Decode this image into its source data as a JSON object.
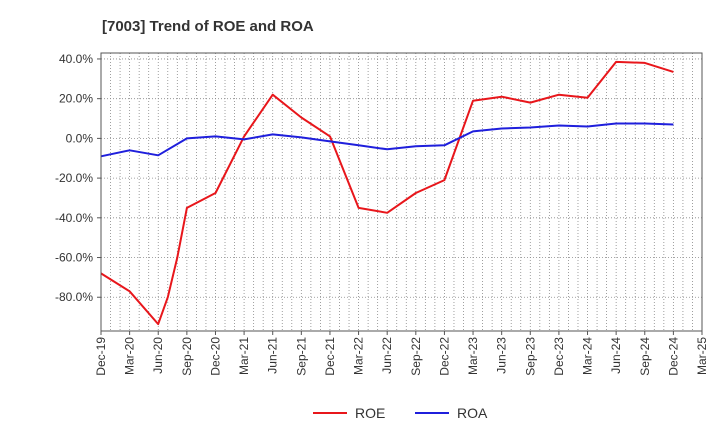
{
  "chart_data": {
    "type": "line",
    "title": "[7003]  Trend of ROE and ROA",
    "xlabel": "",
    "ylabel": "",
    "x": [
      "Dec-19",
      "Mar-20",
      "Jun-20",
      "Sep-20",
      "Dec-20",
      "Mar-21",
      "Jun-21",
      "Sep-21",
      "Dec-21",
      "Mar-22",
      "Jun-22",
      "Sep-22",
      "Dec-22",
      "Mar-23",
      "Jun-23",
      "Sep-23",
      "Dec-23",
      "Mar-24",
      "Jun-24",
      "Sep-24",
      "Dec-24",
      "Mar-25"
    ],
    "x_ticks": [
      "Dec-19",
      "Mar-20",
      "Jun-20",
      "Sep-20",
      "Dec-20",
      "Mar-21",
      "Jun-21",
      "Sep-21",
      "Dec-21",
      "Mar-22",
      "Jun-22",
      "Sep-22",
      "Dec-22",
      "Mar-23",
      "Jun-23",
      "Sep-23",
      "Dec-23",
      "Mar-24",
      "Jun-24",
      "Sep-24",
      "Dec-24",
      "Mar-25"
    ],
    "ylim": [
      -97,
      43
    ],
    "y_ticks": [
      40,
      20,
      0,
      -20,
      -40,
      -60,
      -80
    ],
    "y_tick_labels": [
      "40.0%",
      "20.0%",
      "0.0%",
      "-20.0%",
      "-40.0%",
      "-60.0%",
      "-80.0%"
    ],
    "grid": true,
    "legend_position": "bottom",
    "series": [
      {
        "name": "ROE",
        "color": "#e8161b",
        "points": [
          [
            "Dec-19",
            -68
          ],
          [
            "Mar-20",
            -77
          ],
          [
            "Jun-20",
            -93.5
          ],
          [
            "Jun-20+1",
            -80
          ],
          [
            "Jun-20+2",
            -60
          ],
          [
            "Sep-20",
            -35
          ],
          [
            "Dec-20",
            -27.5
          ],
          [
            "Mar-21",
            1
          ],
          [
            "Jun-21",
            22
          ],
          [
            "Sep-21",
            10.5
          ],
          [
            "Dec-21",
            1
          ],
          [
            "Mar-22",
            -35
          ],
          [
            "Jun-22",
            -37.5
          ],
          [
            "Sep-22",
            -27.5
          ],
          [
            "Dec-22",
            -21
          ],
          [
            "Mar-23",
            19
          ],
          [
            "Jun-23",
            21
          ],
          [
            "Sep-23",
            18
          ],
          [
            "Dec-23",
            22
          ],
          [
            "Mar-24",
            20.5
          ],
          [
            "Jun-24",
            38.5
          ],
          [
            "Sep-24",
            38
          ],
          [
            "Dec-24",
            33.5
          ]
        ]
      },
      {
        "name": "ROA",
        "color": "#1f1fdc",
        "points": [
          [
            "Dec-19",
            -9
          ],
          [
            "Mar-20",
            -6
          ],
          [
            "Jun-20",
            -8.5
          ],
          [
            "Sep-20",
            0
          ],
          [
            "Dec-20",
            1
          ],
          [
            "Mar-21",
            -0.5
          ],
          [
            "Jun-21",
            2
          ],
          [
            "Sep-21",
            0.5
          ],
          [
            "Dec-21",
            -1.5
          ],
          [
            "Mar-22",
            -3.5
          ],
          [
            "Jun-22",
            -5.5
          ],
          [
            "Sep-22",
            -4
          ],
          [
            "Dec-22",
            -3.5
          ],
          [
            "Mar-23",
            3.5
          ],
          [
            "Jun-23",
            5
          ],
          [
            "Sep-23",
            5.5
          ],
          [
            "Dec-23",
            6.5
          ],
          [
            "Mar-24",
            6
          ],
          [
            "Jun-24",
            7.5
          ],
          [
            "Sep-24",
            7.5
          ],
          [
            "Dec-24",
            7
          ]
        ]
      }
    ]
  }
}
